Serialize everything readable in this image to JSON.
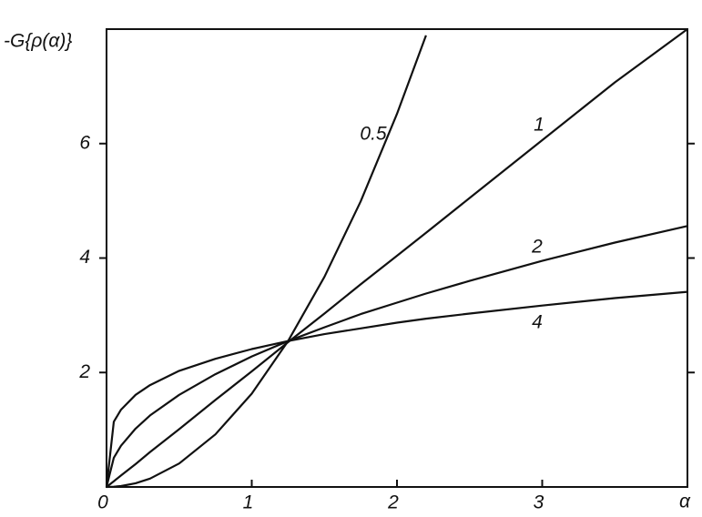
{
  "chart_data": {
    "type": "line",
    "y_label": "-G{ρ(α)}",
    "x_label": "α",
    "x": [
      0,
      0.05,
      0.1,
      0.2,
      0.3,
      0.5,
      0.75,
      1,
      1.25,
      1.5,
      1.75,
      2,
      2.2,
      2.5,
      3,
      3.5,
      4
    ],
    "series": [
      {
        "name": "0.5",
        "color": "#111111",
        "values": [
          0,
          0.004,
          0.016,
          0.065,
          0.147,
          0.41,
          0.92,
          1.63,
          2.55,
          3.67,
          4.99,
          6.52,
          7.89,
          null,
          null,
          null,
          null
        ]
      },
      {
        "name": "1",
        "color": "#111111",
        "values": [
          0,
          0.1,
          0.2,
          0.4,
          0.61,
          1.01,
          1.52,
          2.02,
          2.53,
          3.03,
          3.54,
          4.04,
          4.44,
          5.05,
          6.06,
          7.07,
          8.0
        ]
      },
      {
        "name": "2",
        "color": "#111111",
        "values": [
          0,
          0.51,
          0.72,
          1.02,
          1.25,
          1.61,
          1.97,
          2.28,
          2.55,
          2.79,
          3.02,
          3.22,
          3.38,
          3.6,
          3.95,
          4.27,
          4.56
        ]
      },
      {
        "name": "4",
        "color": "#111111",
        "values": [
          0,
          1.14,
          1.35,
          1.61,
          1.78,
          2.03,
          2.24,
          2.41,
          2.55,
          2.67,
          2.77,
          2.87,
          2.94,
          3.03,
          3.17,
          3.3,
          3.41
        ]
      }
    ],
    "xlim": [
      0,
      4
    ],
    "ylim": [
      0,
      8
    ],
    "xticks": [
      0,
      1,
      2,
      3
    ],
    "yticks": [
      2,
      4,
      6
    ],
    "grid": false
  }
}
